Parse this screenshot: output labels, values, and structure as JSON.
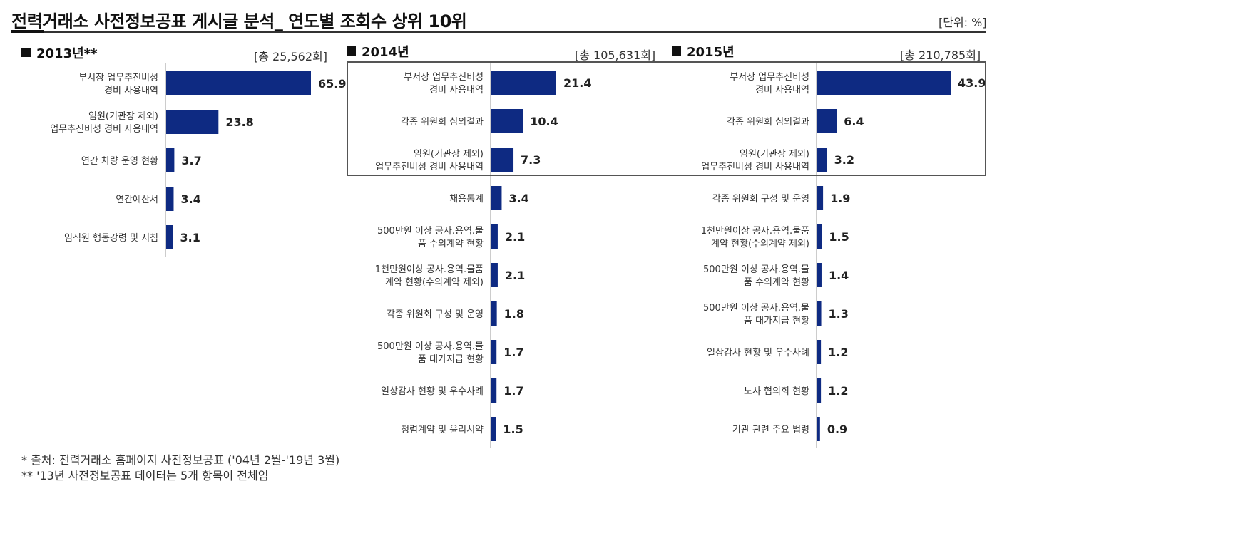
{
  "header": {
    "title": "전력거래소 사전정보공표 게시글 분석_ 연도별 조회수 상위 10위",
    "unit": "[단위: %]"
  },
  "colors": {
    "bar": "#0e2a82",
    "axis": "#999999"
  },
  "chart_data": [
    {
      "type": "bar",
      "orientation": "horizontal",
      "title": "2013년**",
      "total": "[총 25,562회]",
      "categories": [
        "부서장 업무추진비성\n경비 사용내역",
        "임원(기관장 제외)\n업무추진비성 경비 사용내역",
        "연간 차량 운영 현황",
        "연간예산서",
        "임직원 행동강령 및 지침"
      ],
      "values": [
        65.9,
        23.8,
        3.7,
        3.4,
        3.1
      ],
      "value_labels": [
        "65.9",
        "23.8",
        "3.7",
        "3.4",
        "3.1"
      ],
      "xlim": [
        0,
        65.9
      ]
    },
    {
      "type": "bar",
      "orientation": "horizontal",
      "title": "2014년",
      "total": "[총 105,631회]",
      "categories": [
        "부서장 업무추진비성\n경비 사용내역",
        "각종 위원회 심의결과",
        "임원(기관장 제외)\n업무추진비성 경비 사용내역",
        "채용통계",
        "500만원  이상 공사.용역.물\n품 수의계약 현황",
        "1천만원이상 공사.용역.물품\n계약 현황(수의계약 제외)",
        "각종 위원회 구성 및 운영",
        "500만원  이상 공사.용역.물\n품 대가지급 현황",
        "일상감사 현황 및 우수사례",
        "청렴계약 및 윤리서약"
      ],
      "values": [
        21.4,
        10.4,
        7.3,
        3.4,
        2.1,
        2.1,
        1.8,
        1.7,
        1.7,
        1.5
      ],
      "value_labels": [
        "21.4",
        "10.4",
        "7.3",
        "3.4",
        "2.1",
        "2.1",
        "1.8",
        "1.7",
        "1.7",
        "1.5"
      ],
      "xlim": [
        0,
        21.4
      ]
    },
    {
      "type": "bar",
      "orientation": "horizontal",
      "title": "2015년",
      "total": "[총 210,785회]",
      "categories": [
        "부서장 업무추진비성\n경비 사용내역",
        "각종 위원회 심의결과",
        "임원(기관장 제외)\n업무추진비성 경비 사용내역",
        "각종 위원회 구성 및 운영",
        "1천만원이상 공사.용역.물품\n계약 현황(수의계약 제외)",
        "500만원  이상 공사.용역.물\n품 수의계약 현황",
        "500만원  이상 공사.용역.물\n품 대가지급 현황",
        "일상감사 현황 및 우수사례",
        "노사 협의회 현황",
        "기관 관련 주요 법령"
      ],
      "values": [
        43.9,
        6.4,
        3.2,
        1.9,
        1.5,
        1.4,
        1.3,
        1.2,
        1.2,
        0.9
      ],
      "value_labels": [
        "43.9",
        "6.4",
        "3.2",
        "1.9",
        "1.5",
        "1.4",
        "1.3",
        "1.2",
        "1.2",
        "0.9"
      ],
      "xlim": [
        0,
        43.9
      ]
    }
  ],
  "footnotes": [
    "* 출처: 전력거래소 홈페이지 사전정보공표 ('04년 2월-'19년 3월)",
    "** '13년 사전정보공표 데이터는 5개 항목이 전체임"
  ]
}
